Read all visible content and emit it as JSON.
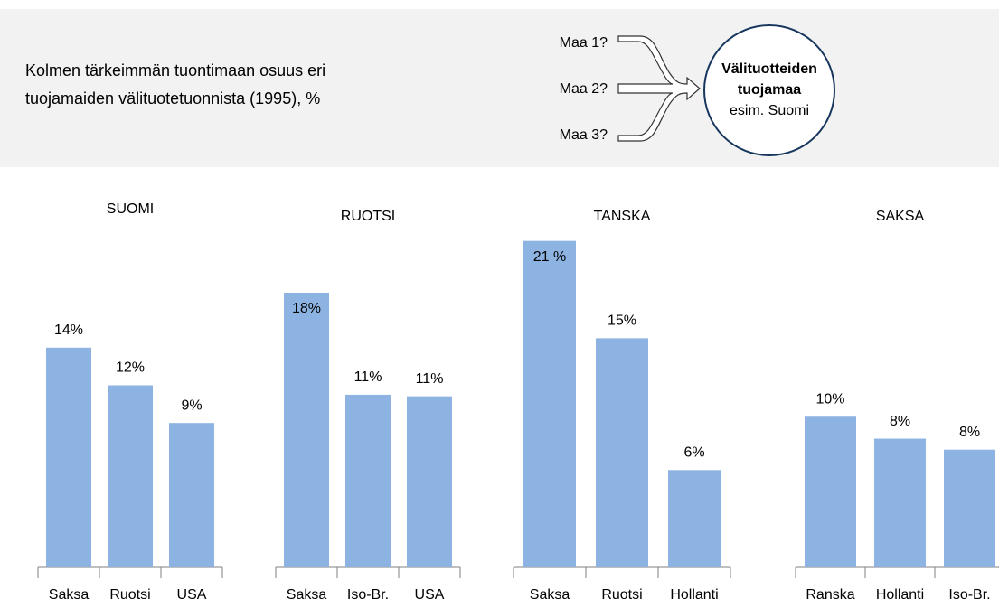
{
  "header": {
    "title_lines": [
      "Kolmen tärkeimmän tuontimaan osuus eri",
      "tuojamaiden välituotetuonnista (1995),  %"
    ],
    "sources": [
      "Maa 1?",
      "Maa 2?",
      "Maa 3?"
    ],
    "target_bold": [
      "Välituotteiden",
      "tuojamaa"
    ],
    "target_note": "esim. Suomi"
  },
  "chart_data": [
    {
      "type": "bar",
      "title": "SUOMI",
      "categories": [
        "Saksa",
        "Ruotsi",
        "USA"
      ],
      "values": [
        14,
        11.6,
        9.2
      ],
      "value_labels": [
        "14%",
        "12%",
        "9%"
      ],
      "color": "#8db3e2",
      "ylim": [
        0,
        21.3
      ]
    },
    {
      "type": "bar",
      "title": "RUOTSI",
      "categories": [
        "Saksa",
        "Iso-Br.",
        "USA"
      ],
      "values": [
        17.5,
        11,
        10.9
      ],
      "value_labels": [
        "18%",
        "11%",
        "11%"
      ],
      "color": "#8db3e2",
      "ylim": [
        0,
        21.3
      ]
    },
    {
      "type": "bar",
      "title": "TANSKA",
      "categories": [
        "Saksa",
        "Ruotsi",
        "Hollanti"
      ],
      "values": [
        20.8,
        14.6,
        6.2
      ],
      "value_labels": [
        "21 %",
        "15%",
        "6%"
      ],
      "color": "#8db3e2",
      "ylim": [
        0,
        21.3
      ]
    },
    {
      "type": "bar",
      "title": "SAKSA",
      "categories": [
        "Ranska",
        "Hollanti",
        "Iso-Br."
      ],
      "values": [
        9.6,
        8.2,
        7.5
      ],
      "value_labels": [
        "10%",
        "8%",
        "8%"
      ],
      "color": "#8db3e2",
      "ylim": [
        0,
        21.3
      ]
    }
  ]
}
